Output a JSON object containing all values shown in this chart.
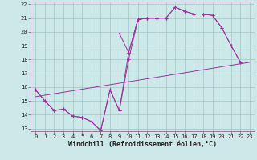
{
  "xlabel": "Windchill (Refroidissement éolien,°C)",
  "background_color": "#cce8e8",
  "line_color": "#993399",
  "xlim": [
    -0.5,
    23.5
  ],
  "ylim": [
    12.8,
    22.2
  ],
  "xticks": [
    0,
    1,
    2,
    3,
    4,
    5,
    6,
    7,
    8,
    9,
    10,
    11,
    12,
    13,
    14,
    15,
    16,
    17,
    18,
    19,
    20,
    21,
    22,
    23
  ],
  "yticks": [
    13,
    14,
    15,
    16,
    17,
    18,
    19,
    20,
    21,
    22
  ],
  "s1x": [
    0,
    1,
    2,
    3,
    4,
    5,
    6,
    7,
    8,
    9,
    10,
    11,
    12,
    13
  ],
  "s1y": [
    15.8,
    15.0,
    14.3,
    14.4,
    13.9,
    13.8,
    13.5,
    12.85,
    15.8,
    14.3,
    18.5,
    20.9,
    21.0,
    21.0
  ],
  "s2x": [
    9,
    10,
    11,
    12,
    13,
    14,
    15,
    16,
    17,
    18,
    19,
    20,
    21,
    22
  ],
  "s2y": [
    19.9,
    18.5,
    20.9,
    21.0,
    21.0,
    21.0,
    21.8,
    21.5,
    21.3,
    21.3,
    21.2,
    20.3,
    19.0,
    17.8
  ],
  "s3x": [
    0,
    1,
    2,
    3,
    4,
    5,
    6,
    7,
    8,
    9,
    10,
    11,
    12,
    13,
    14,
    15,
    16,
    17,
    18,
    19,
    20,
    21,
    22
  ],
  "s3y": [
    15.8,
    15.0,
    14.3,
    14.4,
    13.9,
    13.8,
    13.5,
    12.85,
    15.8,
    14.3,
    18.0,
    20.9,
    21.0,
    21.0,
    21.0,
    21.8,
    21.5,
    21.3,
    21.3,
    21.2,
    20.3,
    19.0,
    17.8
  ],
  "s4x": [
    0,
    23
  ],
  "s4y": [
    15.3,
    17.8
  ],
  "tick_fontsize": 5.0,
  "xlabel_fontsize": 6.0
}
